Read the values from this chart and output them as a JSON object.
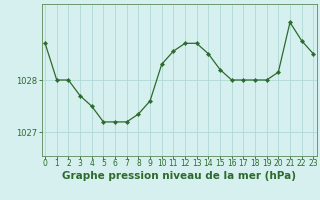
{
  "hours": [
    0,
    1,
    2,
    3,
    4,
    5,
    6,
    7,
    8,
    9,
    10,
    11,
    12,
    13,
    14,
    15,
    16,
    17,
    18,
    19,
    20,
    21,
    22,
    23
  ],
  "pressure": [
    1028.7,
    1028.0,
    1028.0,
    1027.7,
    1027.5,
    1027.2,
    1027.2,
    1027.2,
    1027.35,
    1027.6,
    1028.3,
    1028.55,
    1028.7,
    1028.7,
    1028.5,
    1028.2,
    1028.0,
    1028.0,
    1028.0,
    1028.0,
    1028.15,
    1029.1,
    1028.75,
    1028.5
  ],
  "line_color": "#2d6a2d",
  "marker": "D",
  "marker_size": 2.2,
  "bg_color": "#d6f0f0",
  "grid_color": "#b0d8d8",
  "axis_color": "#5a8a5a",
  "tick_color": "#2d6a2d",
  "label_color": "#2d6a2d",
  "title": "Graphe pression niveau de la mer (hPa)",
  "ylim": [
    1026.55,
    1029.45
  ],
  "yticks": [
    1027,
    1028
  ],
  "xlim": [
    -0.3,
    23.3
  ],
  "title_fontsize": 7.5,
  "tick_fontsize": 5.5,
  "ytick_fontsize": 6.0
}
